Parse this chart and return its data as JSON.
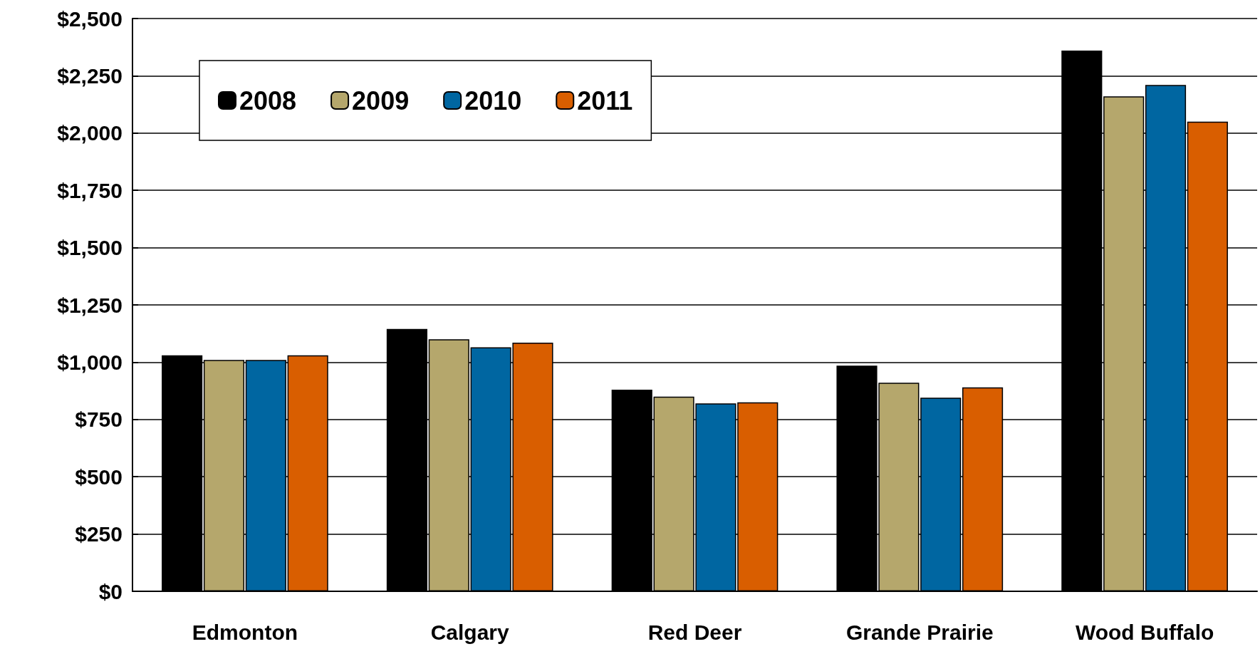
{
  "chart_data": {
    "type": "bar",
    "categories": [
      "Edmonton",
      "Calgary",
      "Red Deer",
      "Grande Prairie",
      "Wood Buffalo"
    ],
    "series": [
      {
        "name": "2008",
        "color": "#000000",
        "values": [
          1030,
          1145,
          880,
          985,
          2360
        ]
      },
      {
        "name": "2009",
        "color": "#b5a76c",
        "values": [
          1010,
          1100,
          850,
          910,
          2160
        ]
      },
      {
        "name": "2010",
        "color": "#0066a1",
        "values": [
          1010,
          1065,
          820,
          845,
          2210
        ]
      },
      {
        "name": "2011",
        "color": "#d95e00",
        "values": [
          1030,
          1085,
          825,
          890,
          2050
        ]
      }
    ],
    "ylim": [
      0,
      2500
    ],
    "yticks": [
      {
        "value": 0,
        "label": "$0"
      },
      {
        "value": 250,
        "label": "$250"
      },
      {
        "value": 500,
        "label": "$500"
      },
      {
        "value": 750,
        "label": "$750"
      },
      {
        "value": 1000,
        "label": "$1,000"
      },
      {
        "value": 1250,
        "label": "$1,250"
      },
      {
        "value": 1500,
        "label": "$1,500"
      },
      {
        "value": 1750,
        "label": "$1,750"
      },
      {
        "value": 2000,
        "label": "$2,000"
      },
      {
        "value": 2250,
        "label": "$2,250"
      },
      {
        "value": 2500,
        "label": "$2,500"
      }
    ],
    "grid": "y",
    "legend": "top left"
  }
}
